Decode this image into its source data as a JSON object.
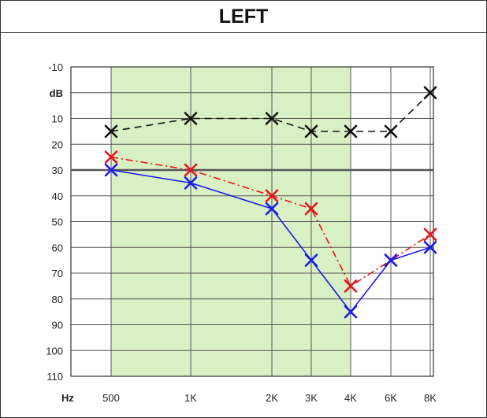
{
  "title": "LEFT",
  "chart_data": {
    "type": "line",
    "title": "LEFT",
    "y_unit_label": "dB",
    "x_unit_label": "Hz",
    "x_tick_labels": [
      "500",
      "1K",
      "2K",
      "3K",
      "4K",
      "6K",
      "8K"
    ],
    "x_values_hz": [
      500,
      1000,
      2000,
      3000,
      4000,
      6000,
      8000
    ],
    "y_tick_labels": [
      "-10",
      "dB",
      "10",
      "20",
      "30",
      "40",
      "50",
      "60",
      "70",
      "80",
      "90",
      "100",
      "110"
    ],
    "ylim": [
      -10,
      110
    ],
    "y_inverted": true,
    "grid": true,
    "shaded_frequency_range_hz": [
      500,
      4000
    ],
    "reference_line_db": 30,
    "marker": "x",
    "series": [
      {
        "color": "#111111",
        "line_style": "dashed",
        "values": [
          15,
          10,
          10,
          15,
          15,
          15,
          0
        ]
      },
      {
        "color": "#e8141c",
        "line_style": "dash-dot",
        "values": [
          25,
          30,
          40,
          45,
          75,
          65,
          55
        ]
      },
      {
        "color": "#1a1aee",
        "line_style": "solid",
        "values": [
          30,
          35,
          45,
          65,
          85,
          65,
          60
        ]
      }
    ],
    "colors": {
      "shade": "#d9f0c4",
      "grid": "#555555",
      "reference_line": "#555555"
    }
  }
}
